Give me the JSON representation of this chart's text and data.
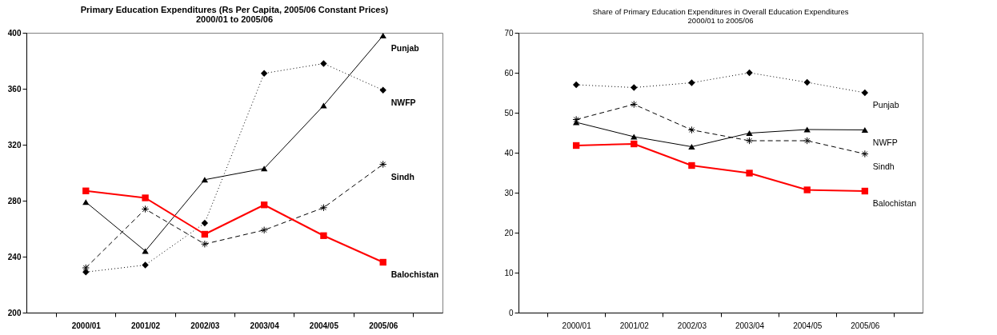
{
  "chart_data": [
    {
      "type": "line",
      "title": "Primary Education Expenditures (Rs Per Capita, 2005/06 Constant Prices)",
      "subtitle": "2000/01 to 2005/06",
      "categories": [
        "2000/01",
        "2001/02",
        "2002/03",
        "2003/04",
        "2004/05",
        "2005/06"
      ],
      "ylim": [
        200,
        400
      ],
      "yticks": [
        200,
        240,
        280,
        320,
        360,
        400
      ],
      "series": [
        {
          "name": "Punjab",
          "color": "#000000",
          "marker": "triangle",
          "line_style": "solid",
          "values": [
            279,
            244,
            295,
            303,
            348,
            398
          ]
        },
        {
          "name": "NWFP",
          "color": "#000000",
          "marker": "diamond",
          "line_style": "dotted",
          "values": [
            229,
            234,
            264,
            371,
            378,
            359
          ]
        },
        {
          "name": "Sindh",
          "color": "#000000",
          "marker": "cross",
          "line_style": "dashed",
          "values": [
            232,
            274,
            249,
            259,
            275,
            306
          ]
        },
        {
          "name": "Balochistan",
          "color": "#ff0000",
          "marker": "square",
          "line_style": "solid",
          "values": [
            287,
            282,
            256,
            277,
            255,
            236
          ]
        }
      ]
    },
    {
      "type": "line",
      "title": "Share of Primary Education Expenditures in Overall Education Expenditures",
      "subtitle": "2000/01 to 2005/06",
      "categories": [
        "2000/01",
        "2001/02",
        "2002/03",
        "2003/04",
        "2004/05",
        "2005/06"
      ],
      "ylim": [
        0,
        70
      ],
      "yticks": [
        0,
        10,
        20,
        30,
        40,
        50,
        60,
        70
      ],
      "series": [
        {
          "name": "Punjab",
          "color": "#000000",
          "marker": "diamond",
          "line_style": "dotted",
          "values": [
            57.0,
            56.3,
            57.5,
            60.0,
            57.6,
            55.0
          ]
        },
        {
          "name": "NWFP",
          "color": "#000000",
          "marker": "triangle",
          "line_style": "solid",
          "values": [
            47.6,
            44.0,
            41.5,
            44.9,
            45.8,
            45.7
          ]
        },
        {
          "name": "Sindh",
          "color": "#000000",
          "marker": "cross",
          "line_style": "dashed",
          "values": [
            48.3,
            52.1,
            45.7,
            43.0,
            43.0,
            39.7
          ]
        },
        {
          "name": "Balochistan",
          "color": "#ff0000",
          "marker": "square",
          "line_style": "solid",
          "values": [
            41.8,
            42.2,
            36.8,
            34.9,
            30.7,
            30.4
          ]
        }
      ]
    }
  ]
}
